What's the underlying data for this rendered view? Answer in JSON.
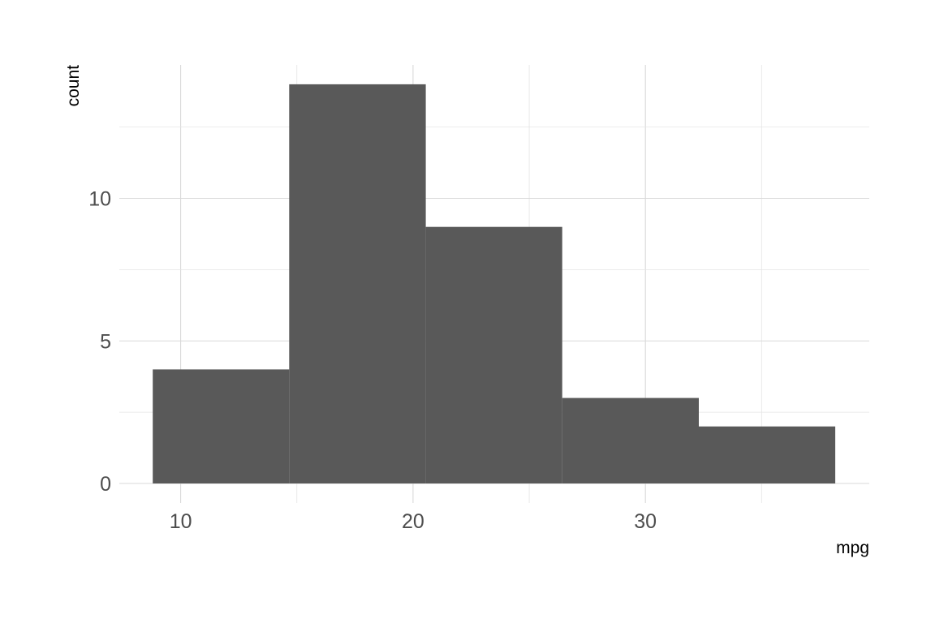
{
  "chart_data": {
    "type": "bar",
    "subtype": "histogram",
    "title": "",
    "xlabel": "mpg",
    "ylabel": "count",
    "bins": [
      {
        "xmin": 8.8,
        "xmax": 14.67,
        "count": 4
      },
      {
        "xmin": 14.67,
        "xmax": 20.55,
        "count": 14
      },
      {
        "xmin": 20.55,
        "xmax": 26.42,
        "count": 9
      },
      {
        "xmin": 26.42,
        "xmax": 32.3,
        "count": 3
      },
      {
        "xmin": 32.3,
        "xmax": 38.17,
        "count": 2
      }
    ],
    "x_ticks": [
      10,
      20,
      30
    ],
    "y_ticks": [
      0,
      5,
      10
    ],
    "xlim": [
      6.2,
      38.2
    ],
    "ylim": [
      0,
      14.7
    ],
    "grid": true,
    "colors": {
      "bar": "#595959",
      "grid": "#d9d9d9",
      "tick_text": "#4d4d4d",
      "axis_title": "#000000"
    }
  }
}
